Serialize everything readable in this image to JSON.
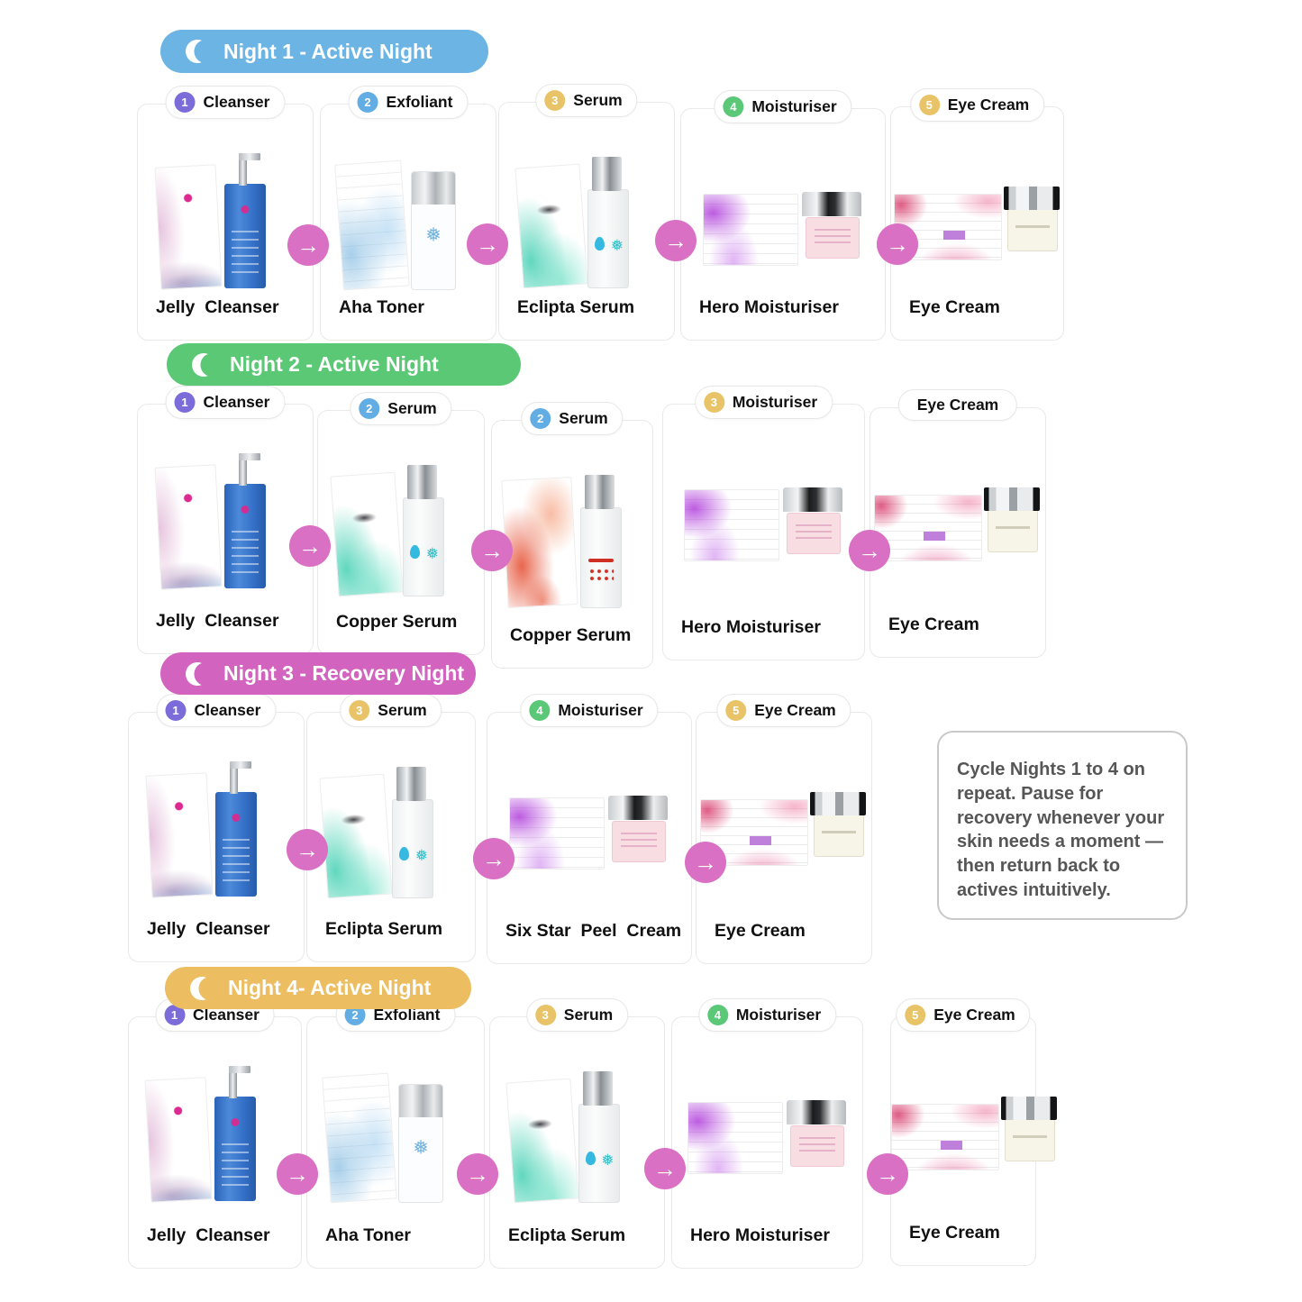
{
  "colors": {
    "night1_pill": "#6cb4e4",
    "night2_pill": "#5bc875",
    "night3_pill": "#d263be",
    "night4_pill": "#ecbe61",
    "badge_purple": "#7b6cd9",
    "badge_blue": "#62ade3",
    "badge_yellow": "#e8c368",
    "badge_green": "#5bc878",
    "arrow_pink": "#d970c4"
  },
  "icons": {
    "moon": "crescent-moon-icon",
    "arrow_glyph": "→"
  },
  "note": {
    "text": "Cycle Nights 1 to 4 on repeat. Pause for recovery whenever your skin needs a moment — then return back to actives intuitively."
  },
  "nights": [
    {
      "label": "Night 1 - Active Night",
      "color": "#6cb4e4",
      "steps": [
        {
          "num": "1",
          "badge": "purple",
          "type": "Cleanser",
          "product": "Jelly  Cleanser",
          "img": "cleanser-blue"
        },
        {
          "num": "2",
          "badge": "blue",
          "type": "Exfoliant",
          "product": "Aha Toner",
          "img": "toner-blue"
        },
        {
          "num": "3",
          "badge": "yellow",
          "type": "Serum",
          "product": "Eclipta Serum",
          "img": "serum-teal"
        },
        {
          "num": "4",
          "badge": "green",
          "type": "Moisturiser",
          "product": "Hero Moisturiser",
          "img": "cream-purple"
        },
        {
          "num": "5",
          "badge": "yellow",
          "type": "Eye Cream",
          "product": "Eye Cream",
          "img": "eyecream-pink"
        }
      ]
    },
    {
      "label": "Night 2 - Active Night",
      "color": "#5bc875",
      "steps": [
        {
          "num": "1",
          "badge": "purple",
          "type": "Cleanser",
          "product": "Jelly  Cleanser",
          "img": "cleanser-blue"
        },
        {
          "num": "2",
          "badge": "blue",
          "type": "Serum",
          "product": "Copper Serum",
          "img": "serum-teal"
        },
        {
          "num": "2",
          "badge": "blue",
          "type": "Serum",
          "product": "Copper Serum",
          "img": "serum-red"
        },
        {
          "num": "3",
          "badge": "yellow",
          "type": "Moisturiser",
          "product": "Hero Moisturiser",
          "img": "cream-purple"
        },
        {
          "num": null,
          "badge": null,
          "type": "Eye Cream",
          "product": "Eye Cream",
          "img": "eyecream-pink"
        }
      ]
    },
    {
      "label": "Night 3 - Recovery Night",
      "color": "#d263be",
      "steps": [
        {
          "num": "1",
          "badge": "purple",
          "type": "Cleanser",
          "product": "Jelly  Cleanser",
          "img": "cleanser-blue"
        },
        {
          "num": "3",
          "badge": "yellow",
          "type": "Serum",
          "product": "Eclipta Serum",
          "img": "serum-teal"
        },
        {
          "num": "4",
          "badge": "green",
          "type": "Moisturiser",
          "product": "Six Star  Peel  Cream",
          "img": "cream-purple"
        },
        {
          "num": "5",
          "badge": "yellow",
          "type": "Eye Cream",
          "product": "Eye Cream",
          "img": "eyecream-pink"
        }
      ]
    },
    {
      "label": "Night 4- Active Night",
      "color": "#ecbe61",
      "steps": [
        {
          "num": "1",
          "badge": "purple",
          "type": "Cleanser",
          "product": "Jelly  Cleanser",
          "img": "cleanser-blue"
        },
        {
          "num": "2",
          "badge": "blue",
          "type": "Exfoliant",
          "product": "Aha Toner",
          "img": "toner-blue"
        },
        {
          "num": "3",
          "badge": "yellow",
          "type": "Serum",
          "product": "Eclipta Serum",
          "img": "serum-teal"
        },
        {
          "num": "4",
          "badge": "green",
          "type": "Moisturiser",
          "product": "Hero Moisturiser",
          "img": "cream-purple"
        },
        {
          "num": "5",
          "badge": "yellow",
          "type": "Eye Cream",
          "product": "Eye Cream",
          "img": "eyecream-pink"
        }
      ]
    }
  ]
}
